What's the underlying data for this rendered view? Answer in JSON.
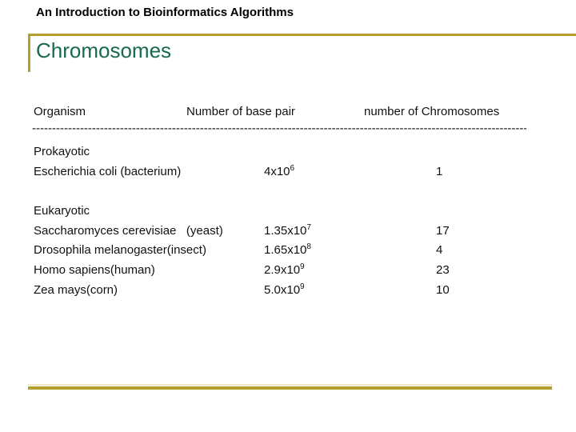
{
  "slide": {
    "header": "An Introduction to Bioinformatics Algorithms",
    "title": "Chromosomes"
  },
  "table": {
    "columns": {
      "organism": "Organism",
      "base_pair": "Number of base pair",
      "chromosomes": "number of Chromosomes"
    },
    "separator": "----------------------------------------------------------------------------------------------------------------------------------",
    "groups": [
      {
        "label": "Prokayotic",
        "rows": [
          {
            "organism": "Escherichia coli (bacterium)",
            "base_value": "4x10",
            "base_exp": "6",
            "chromosomes": "1"
          }
        ]
      },
      {
        "label": "Eukaryotic",
        "rows": [
          {
            "organism": "Saccharomyces cerevisiae   (yeast)",
            "base_value": "1.35x10",
            "base_exp": "7",
            "chromosomes": "17"
          },
          {
            "organism": "Drosophila melanogaster(insect)",
            "base_value": "1.65x10",
            "base_exp": "8",
            "chromosomes": "4"
          },
          {
            "organism": "Homo sapiens(human)",
            "base_value": "2.9x10",
            "base_exp": "9",
            "chromosomes": "23"
          },
          {
            "organism": "Zea mays(corn)",
            "base_value": "5.0x10",
            "base_exp": "9",
            "chromosomes": "10"
          }
        ]
      }
    ]
  },
  "colors": {
    "accent_gold": "#B5A02F",
    "title_green": "#176A4D",
    "text": "#111111"
  }
}
